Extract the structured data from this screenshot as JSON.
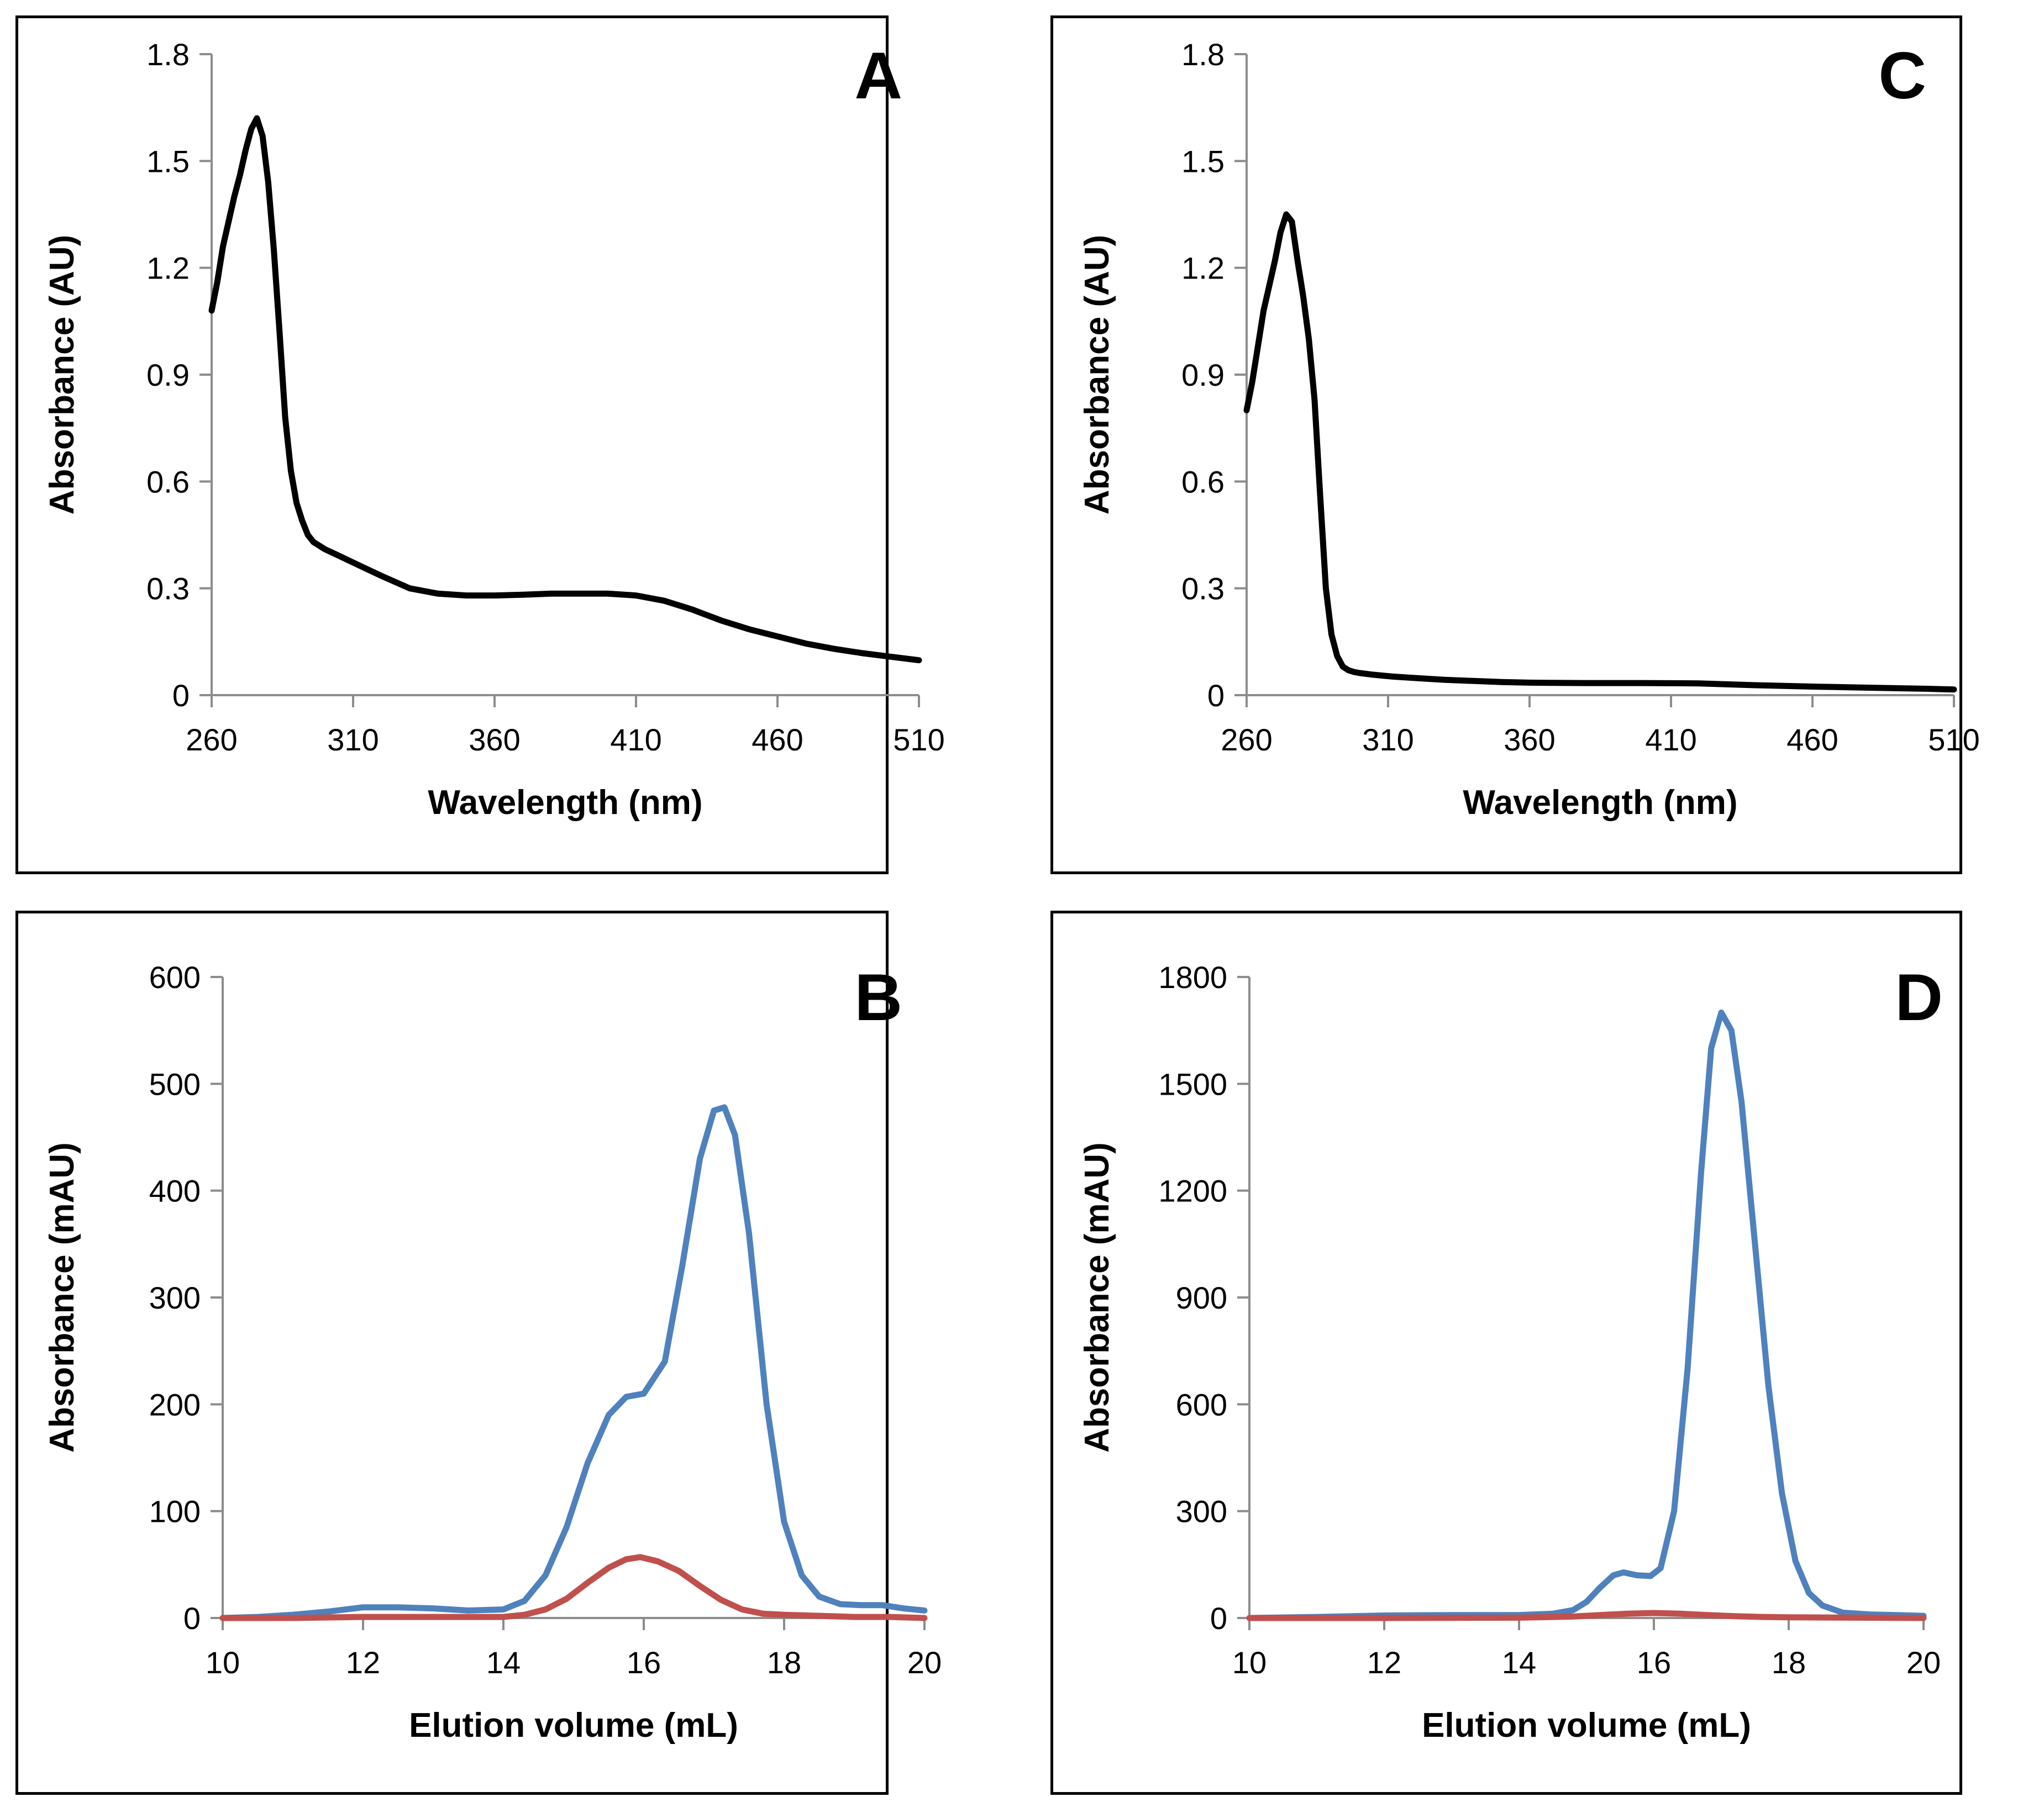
{
  "chart_data": [
    {
      "id": "A",
      "type": "line",
      "panel_label": "A",
      "xlabel": "Wavelength  (nm)",
      "ylabel": "Absorbance  (AU)",
      "xlim": [
        260,
        510
      ],
      "ylim": [
        0,
        1.8
      ],
      "xticks": [
        260,
        310,
        360,
        410,
        460,
        510
      ],
      "yticks": [
        0,
        0.3,
        0.6,
        0.9,
        1.2,
        1.5,
        1.8
      ],
      "ytick_labels": [
        "0",
        "0.3",
        "0.6",
        "0.9",
        "1.2",
        "1.5",
        "1.8"
      ],
      "series": [
        {
          "name": "spectrum",
          "color": "#000000",
          "x": [
            260,
            262,
            264,
            266,
            268,
            270,
            272,
            274,
            276,
            278,
            280,
            282,
            284,
            286,
            288,
            290,
            292,
            294,
            296,
            298,
            300,
            304,
            308,
            312,
            320,
            330,
            340,
            350,
            360,
            370,
            380,
            390,
            400,
            410,
            420,
            430,
            440,
            450,
            460,
            470,
            480,
            490,
            500,
            510
          ],
          "y": [
            1.08,
            1.16,
            1.26,
            1.33,
            1.4,
            1.46,
            1.53,
            1.59,
            1.62,
            1.57,
            1.44,
            1.25,
            1.02,
            0.78,
            0.63,
            0.54,
            0.49,
            0.45,
            0.43,
            0.42,
            0.41,
            0.395,
            0.38,
            0.365,
            0.335,
            0.3,
            0.285,
            0.28,
            0.28,
            0.282,
            0.285,
            0.285,
            0.285,
            0.28,
            0.265,
            0.24,
            0.21,
            0.185,
            0.165,
            0.145,
            0.13,
            0.118,
            0.108,
            0.098
          ]
        }
      ]
    },
    {
      "id": "C",
      "type": "line",
      "panel_label": "C",
      "xlabel": "Wavelength  (nm)",
      "ylabel": "Absorbance  (AU)",
      "xlim": [
        260,
        510
      ],
      "ylim": [
        0,
        1.8
      ],
      "xticks": [
        260,
        310,
        360,
        410,
        460,
        510
      ],
      "yticks": [
        0,
        0.3,
        0.6,
        0.9,
        1.2,
        1.5,
        1.8
      ],
      "ytick_labels": [
        "0",
        "0.3",
        "0.6",
        "0.9",
        "1.2",
        "1.5",
        "1.8"
      ],
      "series": [
        {
          "name": "spectrum",
          "color": "#000000",
          "x": [
            260,
            262,
            264,
            266,
            268,
            270,
            272,
            274,
            276,
            278,
            280,
            282,
            284,
            286,
            288,
            290,
            292,
            294,
            296,
            298,
            300,
            304,
            308,
            312,
            320,
            330,
            340,
            350,
            360,
            380,
            400,
            420,
            440,
            460,
            480,
            500,
            510
          ],
          "y": [
            0.8,
            0.88,
            0.98,
            1.08,
            1.15,
            1.22,
            1.3,
            1.35,
            1.33,
            1.22,
            1.12,
            1.0,
            0.83,
            0.56,
            0.3,
            0.17,
            0.11,
            0.08,
            0.07,
            0.065,
            0.062,
            0.058,
            0.055,
            0.052,
            0.048,
            0.043,
            0.04,
            0.037,
            0.035,
            0.034,
            0.034,
            0.033,
            0.028,
            0.024,
            0.021,
            0.018,
            0.016
          ]
        }
      ]
    },
    {
      "id": "B",
      "type": "line",
      "panel_label": "B",
      "xlabel": "Elution volume (mL)",
      "ylabel": "Absorbance (mAU)",
      "xlim": [
        10,
        20
      ],
      "ylim": [
        0,
        600
      ],
      "xticks": [
        10,
        12,
        14,
        16,
        18,
        20
      ],
      "yticks": [
        0,
        100,
        200,
        300,
        400,
        500,
        600
      ],
      "ytick_labels": [
        "0",
        "100",
        "200",
        "300",
        "400",
        "500",
        "600"
      ],
      "series": [
        {
          "name": "blue trace",
          "color": "#4f81bd",
          "x": [
            10,
            10.5,
            11,
            11.5,
            12,
            12.5,
            13,
            13.5,
            14,
            14.3,
            14.6,
            14.9,
            15.2,
            15.5,
            15.75,
            16.0,
            16.3,
            16.55,
            16.8,
            17.0,
            17.15,
            17.3,
            17.5,
            17.75,
            18.0,
            18.25,
            18.5,
            18.8,
            19.1,
            19.4,
            19.7,
            20
          ],
          "y": [
            0,
            1,
            3,
            6,
            10,
            10,
            9,
            7,
            8,
            16,
            40,
            85,
            145,
            190,
            207,
            210,
            240,
            330,
            430,
            475,
            478,
            452,
            360,
            200,
            90,
            40,
            20,
            13,
            12,
            12,
            9,
            7
          ]
        },
        {
          "name": "red trace",
          "color": "#c0504d",
          "x": [
            10,
            11,
            12,
            13,
            14,
            14.3,
            14.6,
            14.9,
            15.2,
            15.5,
            15.75,
            15.95,
            16.2,
            16.5,
            16.8,
            17.1,
            17.4,
            17.7,
            18.0,
            18.5,
            19,
            19.5,
            20
          ],
          "y": [
            0,
            0,
            1,
            1,
            1,
            3,
            8,
            18,
            33,
            47,
            55,
            57,
            53,
            44,
            30,
            17,
            8,
            4,
            3,
            2,
            1,
            1,
            0
          ]
        }
      ]
    },
    {
      "id": "D",
      "type": "line",
      "panel_label": "D",
      "xlabel": "Elution volume (mL)",
      "ylabel": "Absorbance (mAU)",
      "xlim": [
        10,
        20
      ],
      "ylim": [
        0,
        1800
      ],
      "xticks": [
        10,
        12,
        14,
        16,
        18,
        20
      ],
      "yticks": [
        0,
        300,
        600,
        900,
        1200,
        1500,
        1800
      ],
      "ytick_labels": [
        "0",
        "300",
        "600",
        "900",
        "1200",
        "1500",
        "1800"
      ],
      "series": [
        {
          "name": "blue trace",
          "color": "#4f81bd",
          "x": [
            10,
            11,
            12,
            13,
            14,
            14.5,
            14.8,
            15.0,
            15.2,
            15.4,
            15.55,
            15.75,
            15.95,
            16.1,
            16.3,
            16.5,
            16.7,
            16.85,
            17.0,
            17.15,
            17.3,
            17.5,
            17.7,
            17.9,
            18.1,
            18.3,
            18.5,
            18.8,
            19.2,
            19.6,
            20
          ],
          "y": [
            0,
            3,
            7,
            8,
            8,
            12,
            22,
            45,
            85,
            120,
            128,
            120,
            118,
            140,
            300,
            700,
            1250,
            1600,
            1700,
            1650,
            1450,
            1050,
            650,
            350,
            160,
            70,
            35,
            15,
            10,
            8,
            6
          ]
        },
        {
          "name": "red trace",
          "color": "#c0504d",
          "x": [
            10,
            12,
            14,
            14.8,
            15.2,
            15.6,
            16.0,
            16.4,
            16.8,
            17.2,
            17.6,
            18,
            19,
            20
          ],
          "y": [
            0,
            0,
            1,
            4,
            8,
            12,
            14,
            12,
            8,
            5,
            3,
            2,
            1,
            0
          ]
        }
      ]
    }
  ]
}
